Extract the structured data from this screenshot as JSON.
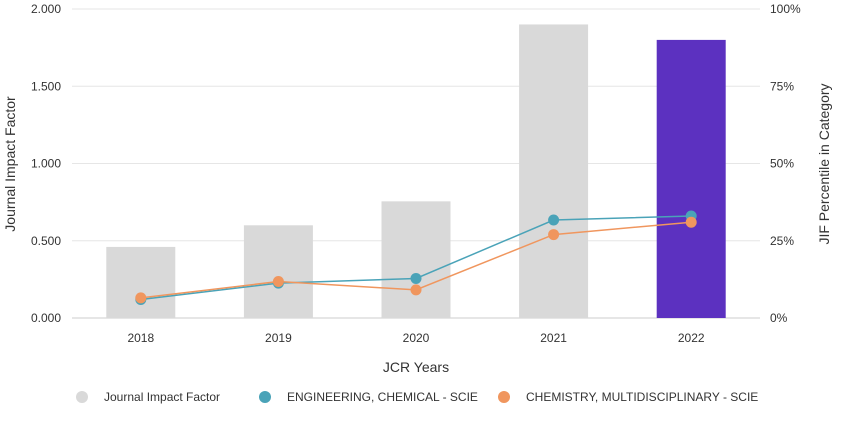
{
  "chart_data": {
    "type": "bar+line",
    "categories": [
      "2018",
      "2019",
      "2020",
      "2021",
      "2022"
    ],
    "bars": {
      "name": "Journal Impact Factor",
      "values": [
        0.46,
        0.6,
        0.755,
        1.9,
        1.8
      ],
      "color": "#d9d9d9",
      "highlight_index": 4,
      "highlight_color": "#5c31c0"
    },
    "series": [
      {
        "name": "ENGINEERING, CHEMICAL - SCIE",
        "values_percent": [
          6.0,
          11.3,
          12.8,
          31.7,
          33.0
        ],
        "color": "#4aa3b8"
      },
      {
        "name": "CHEMISTRY, MULTIDISCIPLINARY - SCIE",
        "values_percent": [
          6.5,
          11.8,
          9.1,
          27.0,
          31.0
        ],
        "color": "#f0965e"
      }
    ],
    "y_left": {
      "label": "Journal Impact Factor",
      "range": [
        0,
        2.0
      ],
      "ticks": [
        "0.000",
        "0.500",
        "1.000",
        "1.500",
        "2.000"
      ]
    },
    "y_right": {
      "label": "JIF Percentile in Category",
      "range": [
        0,
        100
      ],
      "ticks": [
        "0%",
        "25%",
        "50%",
        "75%",
        "100%"
      ]
    },
    "xlabel": "JCR Years",
    "grid": true,
    "legend_position": "bottom"
  }
}
